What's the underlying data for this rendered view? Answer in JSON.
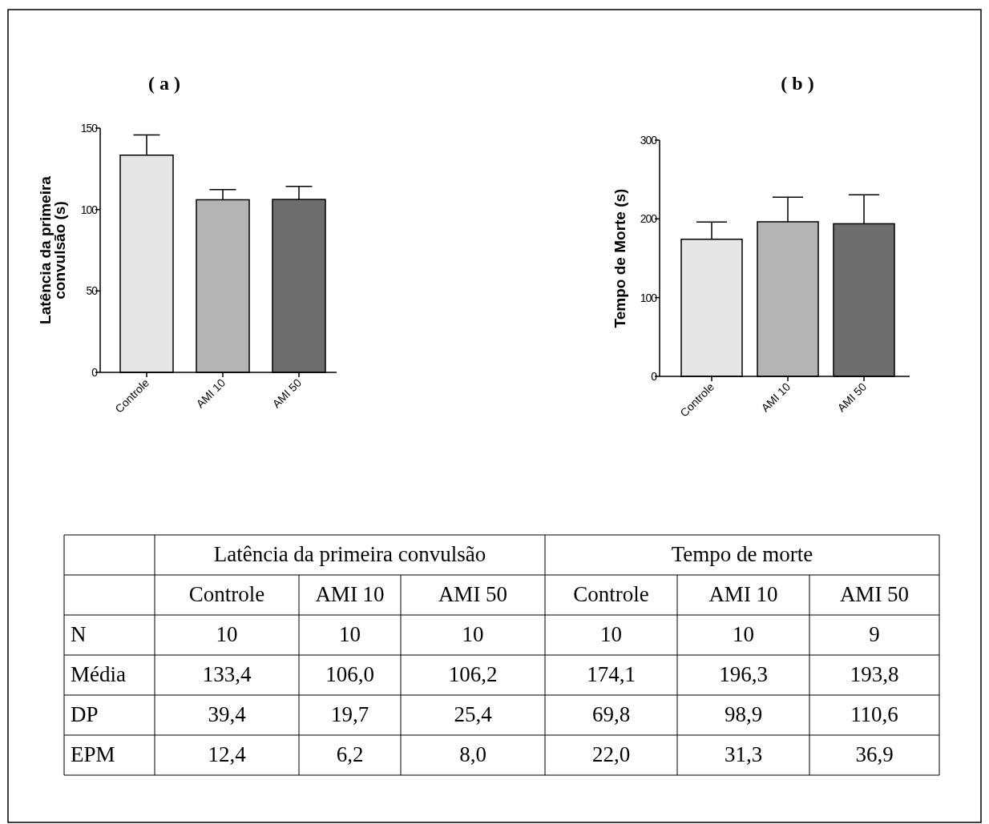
{
  "chart_data": [
    {
      "type": "bar",
      "title": "( a )",
      "ylabel": "Latência da primeira\nconvulsão (s)",
      "categories": [
        "Controle",
        "AMI 10",
        "AMI 50"
      ],
      "values": [
        133.4,
        106.0,
        106.2
      ],
      "colors": [
        "#e6e6e6",
        "#b4b4b4",
        "#6e6e6e"
      ],
      "errors": [
        [
          133.4,
          145.8
        ],
        [
          106.0,
          112.2
        ],
        [
          106.2,
          114.2
        ]
      ],
      "ylim": [
        0,
        150
      ],
      "yticks": [
        0,
        50,
        100,
        150
      ],
      "grid": false
    },
    {
      "type": "bar",
      "title": "( b )",
      "ylabel": "Tempo de Morte (s)",
      "categories": [
        "Controle",
        "AMI 10",
        "AMI 50"
      ],
      "values": [
        174.1,
        196.3,
        193.8
      ],
      "colors": [
        "#e6e6e6",
        "#b4b4b4",
        "#6e6e6e"
      ],
      "errors": [
        [
          174.1,
          196.1
        ],
        [
          196.3,
          227.6
        ],
        [
          193.8,
          230.7
        ]
      ],
      "ylim": [
        0,
        300
      ],
      "yticks": [
        0,
        100,
        200,
        300
      ],
      "grid": false
    },
    {
      "type": "other",
      "annotations": [
        "Latência da primeira convulsão",
        "Tempo de morte",
        "Controle",
        "AMI 10",
        "AMI 50",
        "Controle",
        "AMI 10",
        "AMI 50",
        "N",
        "10",
        "10",
        "10",
        "10",
        "10",
        "9",
        "Média",
        "133,4",
        "106,0",
        "106,2",
        "174,1",
        "196,3",
        "193,8",
        "DP",
        "39,4",
        "19,7",
        "25,4",
        "69,8",
        "98,9",
        "110,6",
        "EPM",
        "12,4",
        "6,2",
        "8,0",
        "22,0",
        "31,3",
        "36,9"
      ]
    }
  ]
}
